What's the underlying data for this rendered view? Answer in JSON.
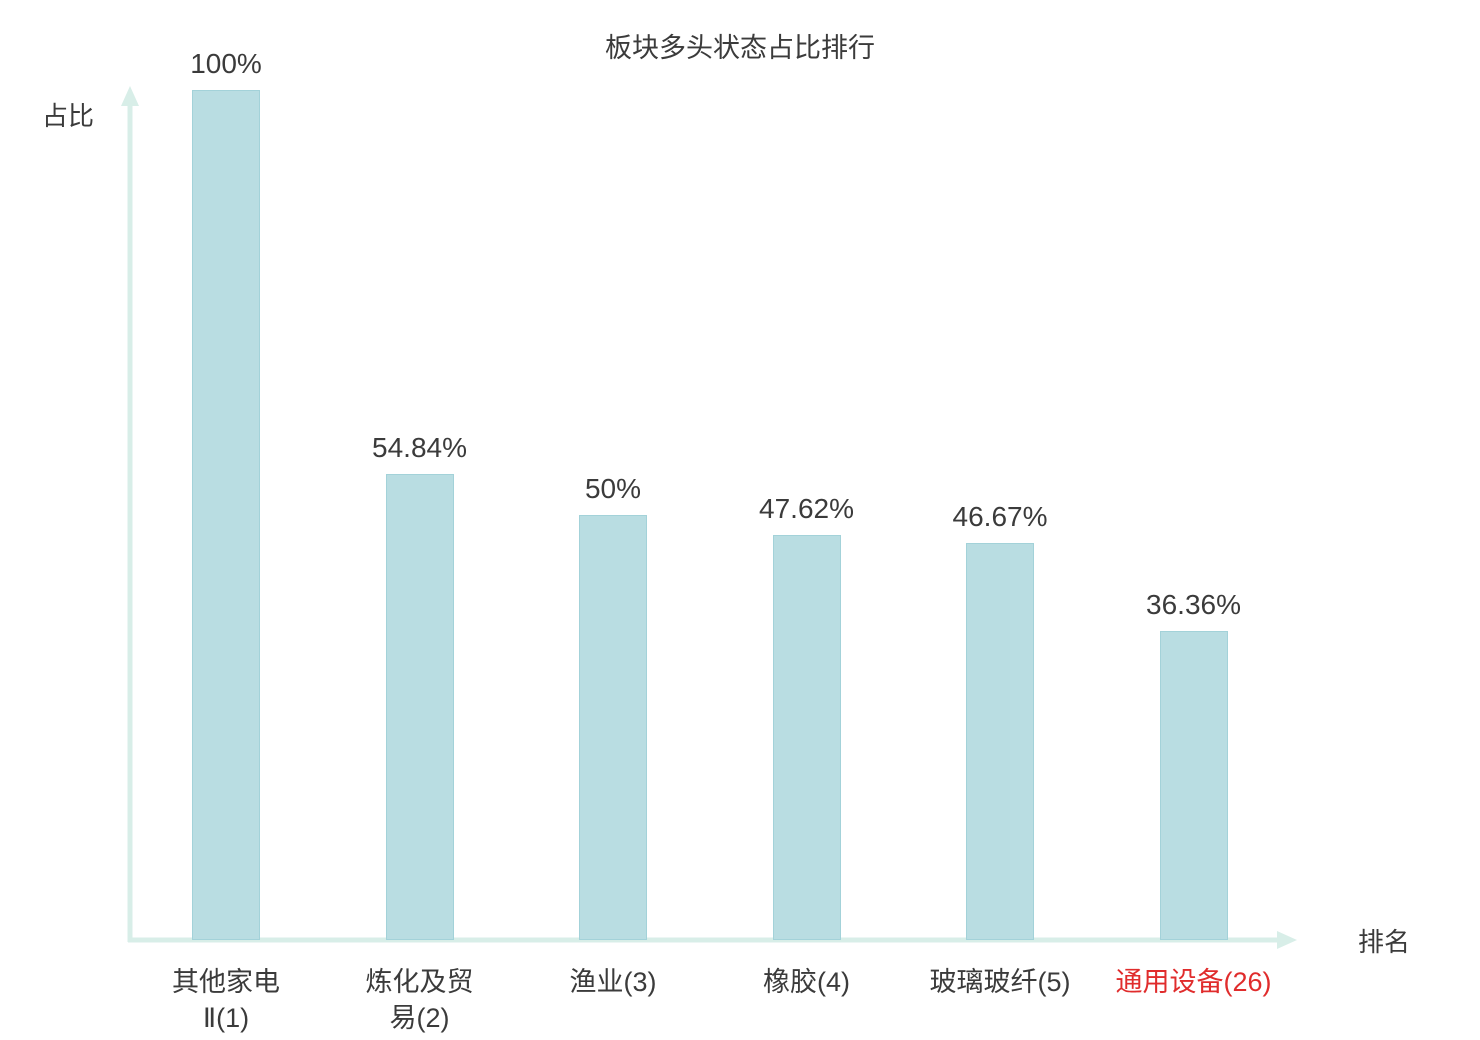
{
  "chart_data": {
    "type": "bar",
    "title": "板块多头状态占比排行",
    "xlabel": "排名",
    "ylabel": "占比",
    "ylim": [
      0,
      100
    ],
    "grid": false,
    "legend": "none",
    "categories": [
      "其他家电\nⅡ(1)",
      "炼化及贸\n易(2)",
      "渔业(3)",
      "橡胶(4)",
      "玻璃玻纤(5)",
      "通用设备(26)"
    ],
    "values": [
      100,
      54.84,
      50,
      47.62,
      46.67,
      36.36
    ],
    "value_labels": [
      "100%",
      "54.84%",
      "50%",
      "47.62%",
      "46.67%",
      "36.36%"
    ],
    "highlighted_category_index": 5,
    "colors": {
      "bar_fill": "#b9dde2",
      "bar_border": "#a3d2d9",
      "axis": "#d8eee8",
      "text": "#3b3b3b",
      "highlight_text": "#e02c2c"
    }
  }
}
